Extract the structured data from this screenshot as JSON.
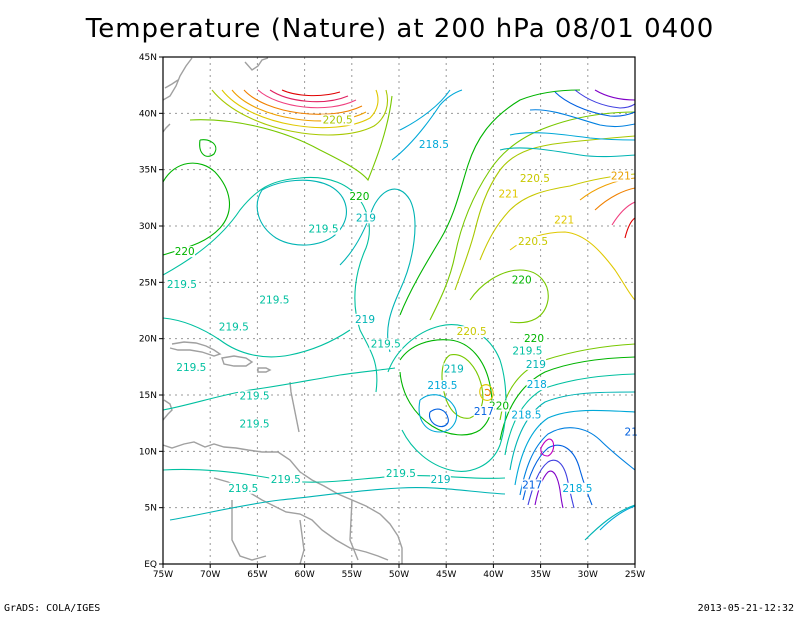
{
  "title": "Temperature (Nature) at 200 hPa 08/01 0400",
  "footer_left": "GrADS: COLA/IGES",
  "footer_right": "2013-05-21-12:32",
  "map": {
    "lon_range": [
      -75,
      -25
    ],
    "lat_range": [
      0,
      45
    ],
    "lon_ticks": [
      {
        "value": -75,
        "label": "75W"
      },
      {
        "value": -70,
        "label": "70W"
      },
      {
        "value": -65,
        "label": "65W"
      },
      {
        "value": -60,
        "label": "60W"
      },
      {
        "value": -55,
        "label": "55W"
      },
      {
        "value": -50,
        "label": "50W"
      },
      {
        "value": -45,
        "label": "45W"
      },
      {
        "value": -40,
        "label": "40W"
      },
      {
        "value": -35,
        "label": "35W"
      },
      {
        "value": -30,
        "label": "30W"
      },
      {
        "value": -25,
        "label": "25W"
      }
    ],
    "lat_ticks": [
      {
        "value": 0,
        "label": "EQ"
      },
      {
        "value": 5,
        "label": "5N"
      },
      {
        "value": 10,
        "label": "10N"
      },
      {
        "value": 15,
        "label": "15N"
      },
      {
        "value": 20,
        "label": "20N"
      },
      {
        "value": 25,
        "label": "25N"
      },
      {
        "value": 30,
        "label": "30N"
      },
      {
        "value": 35,
        "label": "35N"
      },
      {
        "value": 40,
        "label": "40N"
      },
      {
        "value": 45,
        "label": "45N"
      }
    ],
    "grid": true,
    "field": "Temperature (K)",
    "contour_labels": [
      {
        "text": "220.5",
        "lon": -56.5,
        "lat": 39.2,
        "color": "#a8c800"
      },
      {
        "text": "218.5",
        "lon": -46.3,
        "lat": 37.0,
        "color": "#00a8d8"
      },
      {
        "text": "220.5",
        "lon": -35.6,
        "lat": 34.0,
        "color": "#c8c800"
      },
      {
        "text": "221",
        "lon": -26.5,
        "lat": 34.2,
        "color": "#e8a000"
      },
      {
        "text": "221",
        "lon": -38.4,
        "lat": 32.6,
        "color": "#e0c800"
      },
      {
        "text": "220",
        "lon": -54.2,
        "lat": 32.4,
        "color": "#00b400"
      },
      {
        "text": "219",
        "lon": -53.5,
        "lat": 30.5,
        "color": "#00b4b4"
      },
      {
        "text": "219.5",
        "lon": -58.0,
        "lat": 29.5,
        "color": "#00c0a0"
      },
      {
        "text": "221",
        "lon": -32.5,
        "lat": 30.3,
        "color": "#e0c800"
      },
      {
        "text": "220.5",
        "lon": -35.8,
        "lat": 28.4,
        "color": "#c8c800"
      },
      {
        "text": "220",
        "lon": -72.7,
        "lat": 27.5,
        "color": "#00b400"
      },
      {
        "text": "219.5",
        "lon": -73.0,
        "lat": 24.6,
        "color": "#00c0a0"
      },
      {
        "text": "220",
        "lon": -37.0,
        "lat": 25.0,
        "color": "#00b400"
      },
      {
        "text": "219.5",
        "lon": -63.2,
        "lat": 23.2,
        "color": "#00c0a0"
      },
      {
        "text": "219",
        "lon": -53.6,
        "lat": 21.5,
        "color": "#00b4b4"
      },
      {
        "text": "219.5",
        "lon": -67.5,
        "lat": 20.8,
        "color": "#00c0a0"
      },
      {
        "text": "220.5",
        "lon": -42.3,
        "lat": 20.4,
        "color": "#c8c800"
      },
      {
        "text": "220",
        "lon": -35.7,
        "lat": 19.8,
        "color": "#00b400"
      },
      {
        "text": "219.5",
        "lon": -51.4,
        "lat": 19.3,
        "color": "#00c0a0"
      },
      {
        "text": "219.5",
        "lon": -36.4,
        "lat": 18.7,
        "color": "#00c0a0"
      },
      {
        "text": "219",
        "lon": -35.5,
        "lat": 17.5,
        "color": "#00b4b4"
      },
      {
        "text": "219.5",
        "lon": -72.0,
        "lat": 17.2,
        "color": "#00c0a0"
      },
      {
        "text": "219",
        "lon": -44.2,
        "lat": 17.1,
        "color": "#00b4b4"
      },
      {
        "text": "218",
        "lon": -35.4,
        "lat": 15.7,
        "color": "#00a8d8"
      },
      {
        "text": "218.5",
        "lon": -45.4,
        "lat": 15.6,
        "color": "#00a8d8"
      },
      {
        "text": "219.5",
        "lon": -65.3,
        "lat": 14.7,
        "color": "#00c0a0"
      },
      {
        "text": "220",
        "lon": -39.4,
        "lat": 13.8,
        "color": "#00b400"
      },
      {
        "text": "217",
        "lon": -41.0,
        "lat": 13.3,
        "color": "#0060e0"
      },
      {
        "text": "218.5",
        "lon": -36.5,
        "lat": 13.0,
        "color": "#00a8d8"
      },
      {
        "text": "219.5",
        "lon": -65.3,
        "lat": 12.2,
        "color": "#00c0a0"
      },
      {
        "text": "21",
        "lon": -25.4,
        "lat": 11.5,
        "color": "#0060e0"
      },
      {
        "text": "219.5",
        "lon": -49.8,
        "lat": 7.8,
        "color": "#00c0a0"
      },
      {
        "text": "219",
        "lon": -45.6,
        "lat": 7.3,
        "color": "#00b4b4"
      },
      {
        "text": "219.5",
        "lon": -62.0,
        "lat": 7.3,
        "color": "#00c0a0"
      },
      {
        "text": "217",
        "lon": -35.9,
        "lat": 6.8,
        "color": "#0060e0"
      },
      {
        "text": "218.5",
        "lon": -31.1,
        "lat": 6.5,
        "color": "#00a8d8"
      },
      {
        "text": "219.5",
        "lon": -66.5,
        "lat": 6.5,
        "color": "#00c0a0"
      }
    ]
  }
}
